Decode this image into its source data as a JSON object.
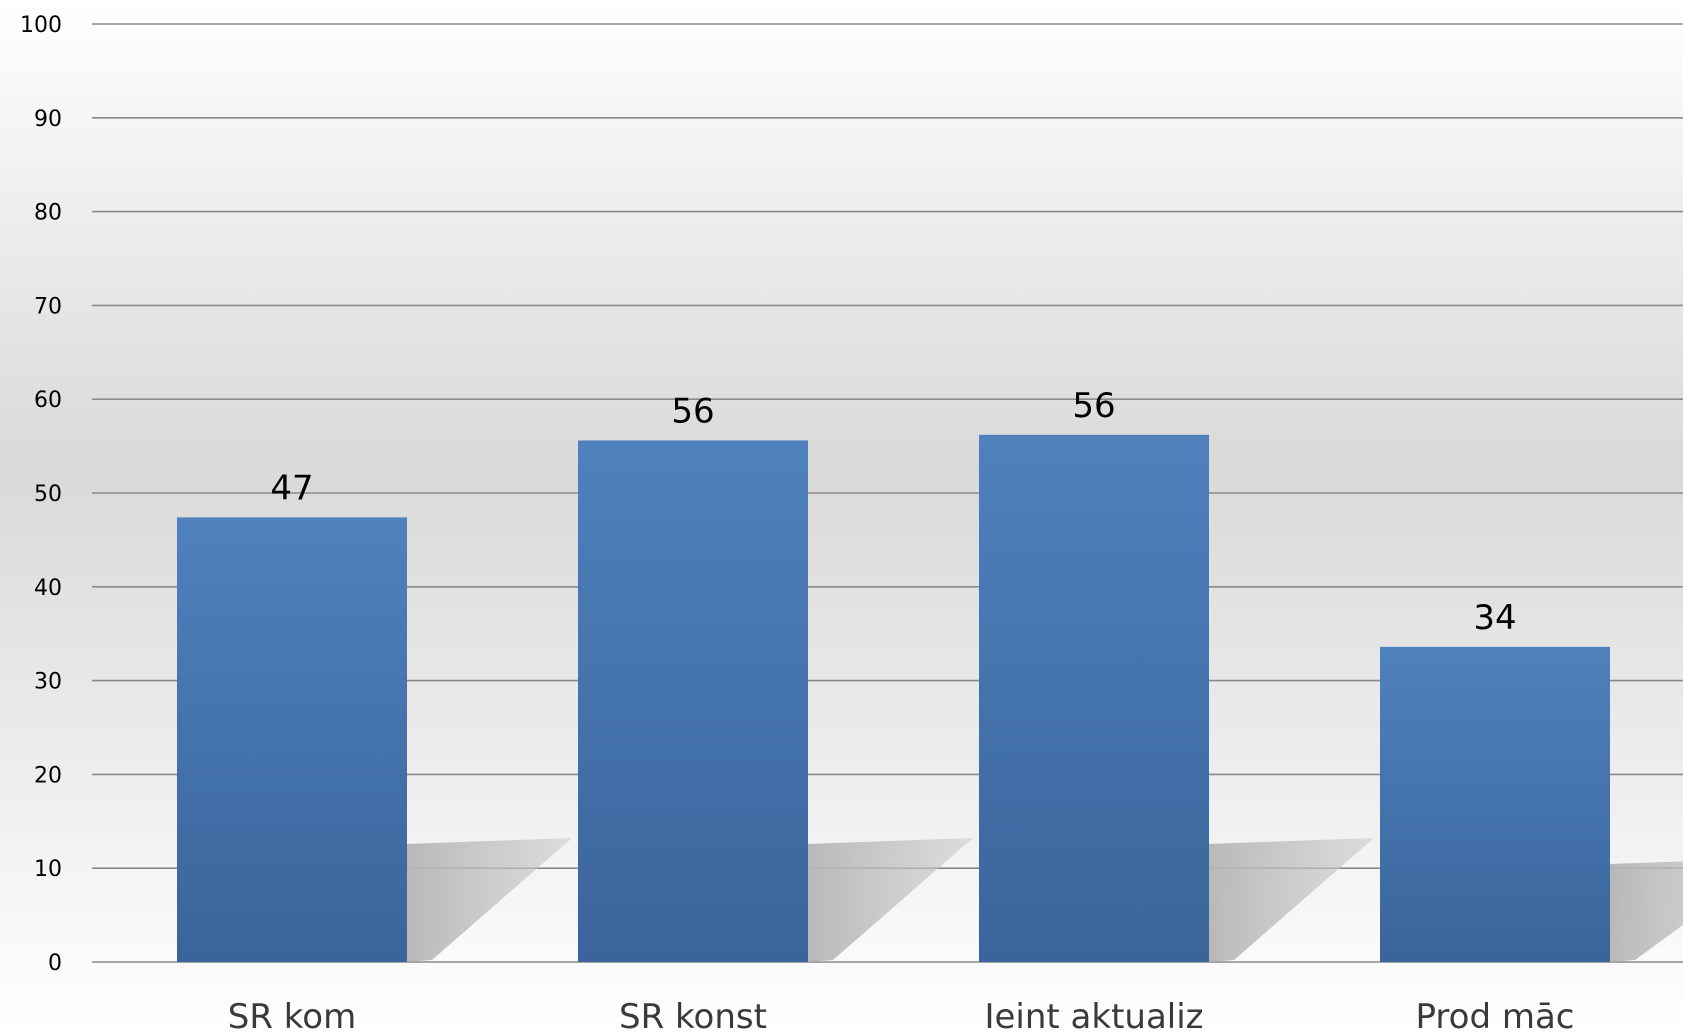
{
  "chart_data": {
    "type": "bar",
    "title": "",
    "xlabel": "",
    "ylabel": "",
    "categories": [
      "SR kom",
      "SR konst",
      "Ieint aktualiz",
      "Prod māc"
    ],
    "values": [
      47.4,
      55.6,
      56.2,
      33.6
    ],
    "data_labels": [
      "47",
      "56",
      "56",
      "34"
    ],
    "ylim": [
      0,
      100
    ],
    "yticks": [
      0,
      10,
      20,
      30,
      40,
      50,
      60,
      70,
      80,
      90,
      100
    ],
    "grid": true,
    "legend": "none",
    "colors": {
      "bar_top": "#4f81bd",
      "bar_bottom": "#3a649b",
      "background_top": "#ffffff",
      "background_mid": "#d9d9d9",
      "background_bottom": "#ffffff",
      "shadow": "#bcbcbc",
      "gridline": "#8a8a8a"
    }
  }
}
